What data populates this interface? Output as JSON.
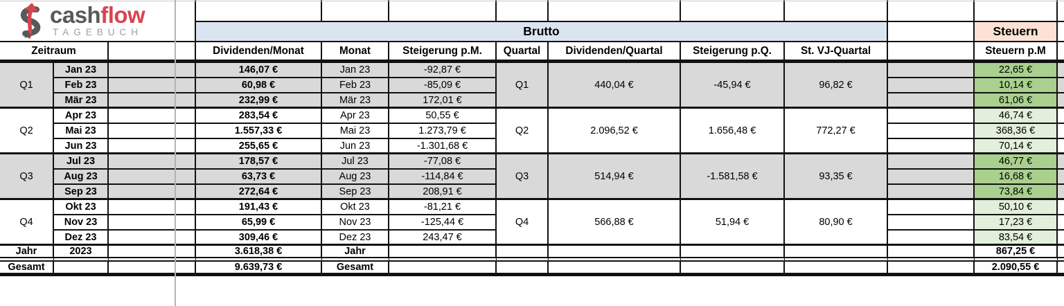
{
  "logo": {
    "cash": "cash",
    "flow": "flow",
    "tagebuch": "TAGEBUCH"
  },
  "bands": {
    "brutto": "Brutto",
    "steuern": "Steuern"
  },
  "headers": {
    "zeitraum": "Zeitraum",
    "dividenden_monat": "Dividenden/Monat",
    "monat": "Monat",
    "steigerung_pm": "Steigerung p.M.",
    "quartal": "Quartal",
    "dividenden_quartal": "Dividenden/Quartal",
    "steigerung_pq": "Steigerung p.Q.",
    "st_vj_quartal": "St. VJ-Quartal",
    "steuern_pm": "Steuern p.M"
  },
  "quarters": [
    {
      "label": "Q1",
      "months": [
        {
          "month": "Jan 23",
          "dividend": "146,07 €",
          "steigerung": "-92,87 €",
          "steuer": "22,65 €"
        },
        {
          "month": "Feb 23",
          "dividend": "60,98 €",
          "steigerung": "-85,09 €",
          "steuer": "10,14 €"
        },
        {
          "month": "Mär 23",
          "dividend": "232,99 €",
          "steigerung": "172,01 €",
          "steuer": "61,06 €"
        }
      ],
      "dividenden_quartal": "440,04 €",
      "steigerung_pq": "-45,94 €",
      "st_vj_quartal": "96,82 €"
    },
    {
      "label": "Q2",
      "months": [
        {
          "month": "Apr 23",
          "dividend": "283,54 €",
          "steigerung": "50,55 €",
          "steuer": "46,74 €"
        },
        {
          "month": "Mai 23",
          "dividend": "1.557,33 €",
          "steigerung": "1.273,79 €",
          "steuer": "368,36 €"
        },
        {
          "month": "Jun 23",
          "dividend": "255,65 €",
          "steigerung": "-1.301,68 €",
          "steuer": "70,14 €"
        }
      ],
      "dividenden_quartal": "2.096,52 €",
      "steigerung_pq": "1.656,48 €",
      "st_vj_quartal": "772,27 €"
    },
    {
      "label": "Q3",
      "months": [
        {
          "month": "Jul 23",
          "dividend": "178,57 €",
          "steigerung": "-77,08 €",
          "steuer": "46,77 €"
        },
        {
          "month": "Aug 23",
          "dividend": "63,73 €",
          "steigerung": "-114,84 €",
          "steuer": "16,68 €"
        },
        {
          "month": "Sep 23",
          "dividend": "272,64 €",
          "steigerung": "208,91 €",
          "steuer": "73,84 €"
        }
      ],
      "dividenden_quartal": "514,94 €",
      "steigerung_pq": "-1.581,58 €",
      "st_vj_quartal": "93,35 €"
    },
    {
      "label": "Q4",
      "months": [
        {
          "month": "Okt 23",
          "dividend": "191,43 €",
          "steigerung": "-81,21 €",
          "steuer": "50,10 €"
        },
        {
          "month": "Nov 23",
          "dividend": "65,99 €",
          "steigerung": "-125,44 €",
          "steuer": "17,23 €"
        },
        {
          "month": "Dez 23",
          "dividend": "309,46 €",
          "steigerung": "243,47 €",
          "steuer": "83,54 €"
        }
      ],
      "dividenden_quartal": "566,88 €",
      "steigerung_pq": "51,94 €",
      "st_vj_quartal": "80,90 €"
    }
  ],
  "totals": {
    "jahr_label": "Jahr",
    "jahr_year": "2023",
    "jahr_dividenden": "3.618,38 €",
    "jahr_monat_label": "Jahr",
    "jahr_steuern": "867,25 €",
    "gesamt_label": "Gesamt",
    "gesamt_dividenden": "9.639,73 €",
    "gesamt_monat_label": "Gesamt",
    "gesamt_steuern": "2.090,55 €"
  },
  "colors": {
    "stripe_gray": "#d9d9d9",
    "band_blue": "#dbe5f1",
    "band_peach": "#fbe2d5",
    "green_dark": "#a9d08e",
    "green_light": "#e2efda",
    "logo_red": "#d8444e",
    "logo_gray": "#58595b"
  }
}
